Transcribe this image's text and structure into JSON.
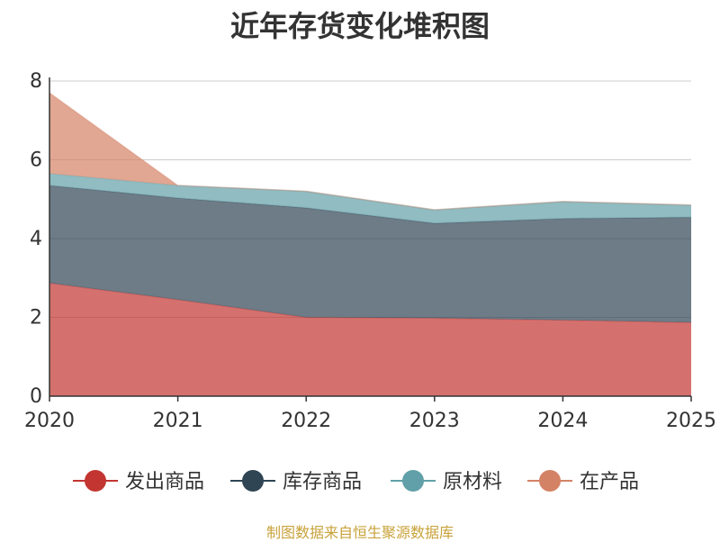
{
  "chart_data": {
    "type": "area",
    "stacked": true,
    "title": "近年存货变化堆积图",
    "x": [
      "2020",
      "2021",
      "2022",
      "2023",
      "2024",
      "2025"
    ],
    "ylim": [
      0,
      8
    ],
    "yticks": [
      "0",
      "2",
      "4",
      "6",
      "8"
    ],
    "grid": true,
    "legend_position": "bottom",
    "series": [
      {
        "name": "发出商品",
        "color": "#c23531",
        "values": [
          2.87,
          2.45,
          2.0,
          1.98,
          1.93,
          1.87
        ]
      },
      {
        "name": "库存商品",
        "color": "#2f4554",
        "values": [
          2.48,
          2.58,
          2.78,
          2.41,
          2.58,
          2.67
        ]
      },
      {
        "name": "原材料",
        "color": "#61a0a8",
        "values": [
          0.3,
          0.32,
          0.42,
          0.34,
          0.43,
          0.31
        ]
      },
      {
        "name": "在产品",
        "color": "#d48265",
        "values": [
          2.05,
          0.0,
          0.0,
          0.0,
          0.0,
          0.0
        ]
      }
    ]
  },
  "source_note": "制图数据来自恒生聚源数据库"
}
